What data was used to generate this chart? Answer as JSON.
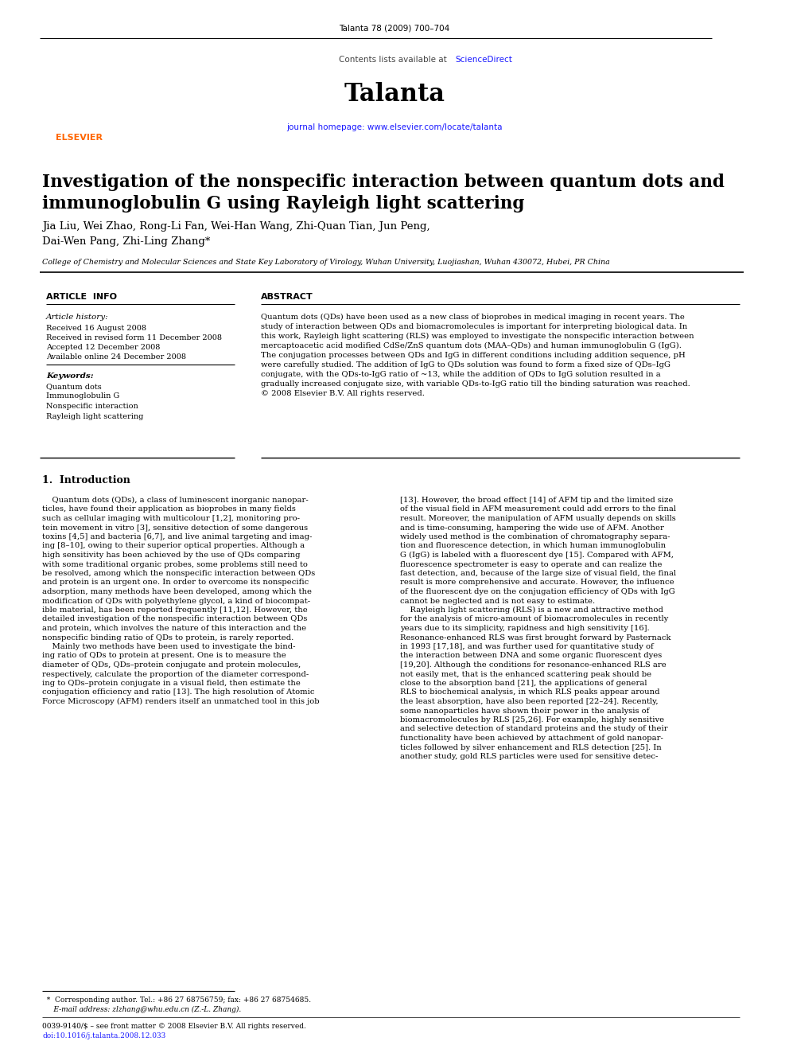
{
  "journal_citation": "Talanta 78 (2009) 700–704",
  "contents_text": "Contents lists available at ",
  "science_direct": "ScienceDirect",
  "journal_name": "Talanta",
  "journal_hp_prefix": "journal homepage: ",
  "journal_hp_link": "www.elsevier.com/locate/talanta",
  "title_line1": "Investigation of the nonspecific interaction between quantum dots and",
  "title_line2": "immunoglobulin G using Rayleigh light scattering",
  "authors_line1": "Jia Liu, Wei Zhao, Rong-Li Fan, Wei-Han Wang, Zhi-Quan Tian, Jun Peng,",
  "authors_line2": "Dai-Wen Pang, Zhi-Ling Zhang*",
  "affiliation": "College of Chemistry and Molecular Sciences and State Key Laboratory of Virology, Wuhan University, Luojiashan, Wuhan 430072, Hubei, PR China",
  "article_info_header": "ARTICLE  INFO",
  "abstract_header": "ABSTRACT",
  "article_history_label": "Article history:",
  "received": "Received 16 August 2008",
  "received_revised": "Received in revised form 11 December 2008",
  "accepted": "Accepted 12 December 2008",
  "available": "Available online 24 December 2008",
  "keywords_label": "Keywords:",
  "keywords": [
    "Quantum dots",
    "Immunoglobulin G",
    "Nonspecific interaction",
    "Rayleigh light scattering"
  ],
  "abstract_text": "Quantum dots (QDs) have been used as a new class of bioprobes in medical imaging in recent years. The\nstudy of interaction between QDs and biomacromolecules is important for interpreting biological data. In\nthis work, Rayleigh light scattering (RLS) was employed to investigate the nonspecific interaction between\nmercaptoacetic acid modified CdSe/ZnS quantum dots (MAA–QDs) and human immunoglobulin G (IgG).\nThe conjugation processes between QDs and IgG in different conditions including addition sequence, pH\nwere carefully studied. The addition of IgG to QDs solution was found to form a fixed size of QDs–IgG\nconjugate, with the QDs-to-IgG ratio of ~13, while the addition of QDs to IgG solution resulted in a\ngradually increased conjugate size, with variable QDs-to-IgG ratio till the binding saturation was reached.\n© 2008 Elsevier B.V. All rights reserved.",
  "section1_title": "1.  Introduction",
  "intro_col1_lines": [
    "    Quantum dots (QDs), a class of luminescent inorganic nanopar-",
    "ticles, have found their application as bioprobes in many fields",
    "such as cellular imaging with multicolour [1,2], monitoring pro-",
    "tein movement in vitro [3], sensitive detection of some dangerous",
    "toxins [4,5] and bacteria [6,7], and live animal targeting and imag-",
    "ing [8–10], owing to their superior optical properties. Although a",
    "high sensitivity has been achieved by the use of QDs comparing",
    "with some traditional organic probes, some problems still need to",
    "be resolved, among which the nonspecific interaction between QDs",
    "and protein is an urgent one. In order to overcome its nonspecific",
    "adsorption, many methods have been developed, among which the",
    "modification of QDs with polyethylene glycol, a kind of biocompat-",
    "ible material, has been reported frequently [11,12]. However, the",
    "detailed investigation of the nonspecific interaction between QDs",
    "and protein, which involves the nature of this interaction and the",
    "nonspecific binding ratio of QDs to protein, is rarely reported.",
    "    Mainly two methods have been used to investigate the bind-",
    "ing ratio of QDs to protein at present. One is to measure the",
    "diameter of QDs, QDs–protein conjugate and protein molecules,",
    "respectively, calculate the proportion of the diameter correspond-",
    "ing to QDs–protein conjugate in a visual field, then estimate the",
    "conjugation efficiency and ratio [13]. The high resolution of Atomic",
    "Force Microscopy (AFM) renders itself an unmatched tool in this job"
  ],
  "intro_col2_lines": [
    "[13]. However, the broad effect [14] of AFM tip and the limited size",
    "of the visual field in AFM measurement could add errors to the final",
    "result. Moreover, the manipulation of AFM usually depends on skills",
    "and is time-consuming, hampering the wide use of AFM. Another",
    "widely used method is the combination of chromatography separa-",
    "tion and fluorescence detection, in which human immunoglobulin",
    "G (IgG) is labeled with a fluorescent dye [15]. Compared with AFM,",
    "fluorescence spectrometer is easy to operate and can realize the",
    "fast detection, and, because of the large size of visual field, the final",
    "result is more comprehensive and accurate. However, the influence",
    "of the fluorescent dye on the conjugation efficiency of QDs with IgG",
    "cannot be neglected and is not easy to estimate.",
    "    Rayleigh light scattering (RLS) is a new and attractive method",
    "for the analysis of micro-amount of biomacromolecules in recently",
    "years due to its simplicity, rapidness and high sensitivity [16].",
    "Resonance-enhanced RLS was first brought forward by Pasternack",
    "in 1993 [17,18], and was further used for quantitative study of",
    "the interaction between DNA and some organic fluorescent dyes",
    "[19,20]. Although the conditions for resonance-enhanced RLS are",
    "not easily met, that is the enhanced scattering peak should be",
    "close to the absorption band [21], the applications of general",
    "RLS to biochemical analysis, in which RLS peaks appear around",
    "the least absorption, have also been reported [22–24]. Recently,",
    "some nanoparticles have shown their power in the analysis of",
    "biomacromolecules by RLS [25,26]. For example, highly sensitive",
    "and selective detection of standard proteins and the study of their",
    "functionality have been achieved by attachment of gold nanopar-",
    "ticles followed by silver enhancement and RLS detection [25]. In",
    "another study, gold RLS particles were used for sensitive detec-"
  ],
  "footnote1": "  *  Corresponding author. Tel.: +86 27 68756759; fax: +86 27 68754685.",
  "footnote2": "     E-mail address: zlzhang@whu.edu.cn (Z.-L. Zhang).",
  "footnote3": "0039-9140/$ – see front matter © 2008 Elsevier B.V. All rights reserved.",
  "footnote4": "doi:10.1016/j.talanta.2008.12.033",
  "bg_color": "#ffffff",
  "gray_bg": "#e8e8e8",
  "dark_bar": "#111111",
  "link_color": "#1a1aff",
  "orange": "#ff6600",
  "black": "#000000"
}
